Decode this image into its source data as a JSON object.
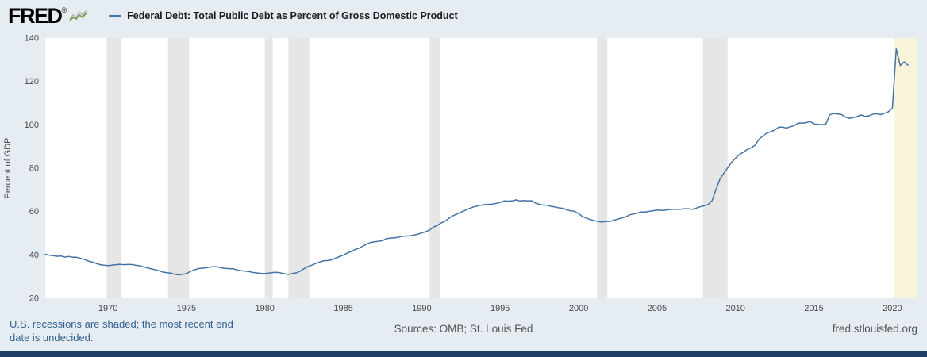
{
  "header": {
    "logo_text": "FRED",
    "logo_registered": "®",
    "series_label": "Federal Debt: Total Public Debt as Percent of Gross Domestic Product"
  },
  "footer": {
    "recession_note": "U.S. recessions are shaded; the most recent end date is undecided.",
    "sources": "Sources: OMB; St. Louis Fed",
    "site": "fred.stlouisfed.org"
  },
  "colors": {
    "page_bg": "#e5edf3",
    "plot_bg": "#ffffff",
    "line": "#4572a7",
    "recession": "#e6e6e6",
    "recession_undecided": "#f8f4da",
    "bottom_bar": "#1e3f66",
    "note_text": "#33628f",
    "axis_text": "#494949",
    "logo_sparkline_green": "#7a9c49",
    "logo_sparkline_gray": "#b0b7bd"
  },
  "chart_data": {
    "type": "line",
    "title": "Federal Debt: Total Public Debt as Percent of Gross Domestic Product",
    "ylabel": "Percent of GDP",
    "xlabel": "",
    "xlim": [
      1966,
      2021.6
    ],
    "ylim": [
      20,
      140
    ],
    "x_ticks": [
      1970,
      1975,
      1980,
      1985,
      1990,
      1995,
      2000,
      2005,
      2010,
      2015,
      2020
    ],
    "y_ticks": [
      20,
      40,
      60,
      80,
      100,
      120,
      140
    ],
    "grid": false,
    "legend_position": "top-left",
    "recessions": [
      {
        "start": 1969.92,
        "end": 1970.83
      },
      {
        "start": 1973.83,
        "end": 1975.17
      },
      {
        "start": 1980.0,
        "end": 1980.5
      },
      {
        "start": 1981.5,
        "end": 1982.83
      },
      {
        "start": 1990.5,
        "end": 1991.17
      },
      {
        "start": 2001.17,
        "end": 2001.83
      },
      {
        "start": 2007.92,
        "end": 2009.5
      },
      {
        "start": 2020.08,
        "end": 2021.6,
        "undecided": true
      }
    ],
    "series": [
      {
        "name": "Federal Debt: Total Public Debt as Percent of Gross Domestic Product",
        "frequency": "quarterly",
        "x_start": 1966.0,
        "x_step": 0.25,
        "values": [
          40.3,
          39.9,
          39.7,
          39.4,
          39.5,
          39.0,
          39.3,
          38.9,
          38.9,
          38.4,
          37.9,
          37.2,
          36.7,
          36.1,
          35.5,
          35.3,
          35.1,
          35.3,
          35.5,
          35.7,
          35.5,
          35.6,
          35.6,
          35.3,
          35.0,
          34.5,
          34.1,
          33.6,
          33.2,
          32.7,
          32.1,
          31.8,
          31.6,
          31.1,
          30.8,
          31.1,
          31.4,
          32.4,
          33.1,
          33.7,
          33.9,
          34.1,
          34.4,
          34.6,
          34.5,
          34.0,
          33.8,
          33.7,
          33.6,
          33.0,
          32.7,
          32.5,
          32.3,
          31.9,
          31.7,
          31.5,
          31.4,
          31.6,
          31.9,
          32.0,
          31.7,
          31.3,
          31.0,
          31.4,
          31.7,
          32.5,
          33.7,
          34.7,
          35.3,
          36.1,
          36.7,
          37.3,
          37.4,
          37.7,
          38.5,
          39.2,
          39.9,
          40.8,
          41.6,
          42.5,
          43.1,
          44.1,
          45.0,
          45.8,
          46.1,
          46.3,
          46.6,
          47.5,
          47.7,
          47.9,
          48.1,
          48.6,
          48.7,
          48.8,
          49.1,
          49.6,
          50.1,
          50.7,
          51.5,
          52.8,
          53.7,
          54.8,
          55.6,
          57.0,
          58.1,
          58.9,
          59.7,
          60.5,
          61.3,
          62.0,
          62.5,
          62.9,
          63.2,
          63.3,
          63.4,
          63.8,
          64.2,
          64.9,
          64.8,
          64.9,
          65.4,
          64.9,
          65.1,
          64.9,
          65.0,
          63.9,
          63.3,
          63.0,
          62.9,
          62.4,
          62.1,
          61.7,
          61.5,
          60.8,
          60.3,
          60.1,
          59.0,
          57.7,
          57.0,
          56.3,
          55.8,
          55.4,
          55.2,
          55.4,
          55.5,
          56.0,
          56.5,
          57.1,
          57.5,
          58.5,
          58.9,
          59.3,
          59.8,
          59.8,
          60.1,
          60.4,
          60.7,
          60.5,
          60.6,
          60.9,
          61.1,
          61.0,
          61.1,
          61.3,
          61.3,
          61.0,
          61.6,
          62.2,
          62.7,
          63.2,
          65.0,
          70.0,
          74.8,
          77.6,
          80.2,
          82.7,
          84.6,
          86.3,
          87.4,
          88.6,
          89.4,
          90.6,
          93.4,
          94.9,
          96.2,
          96.8,
          97.6,
          98.9,
          98.9,
          98.5,
          99.1,
          99.7,
          100.8,
          100.8,
          101.0,
          101.6,
          100.4,
          100.2,
          100.1,
          100.2,
          104.6,
          105.2,
          105.0,
          104.8,
          103.6,
          103.0,
          103.3,
          103.8,
          104.5,
          103.9,
          104.1,
          104.9,
          105.1,
          104.7,
          105.3,
          106.0,
          107.7,
          135.0,
          127.3,
          129.0,
          127.5
        ]
      }
    ]
  }
}
